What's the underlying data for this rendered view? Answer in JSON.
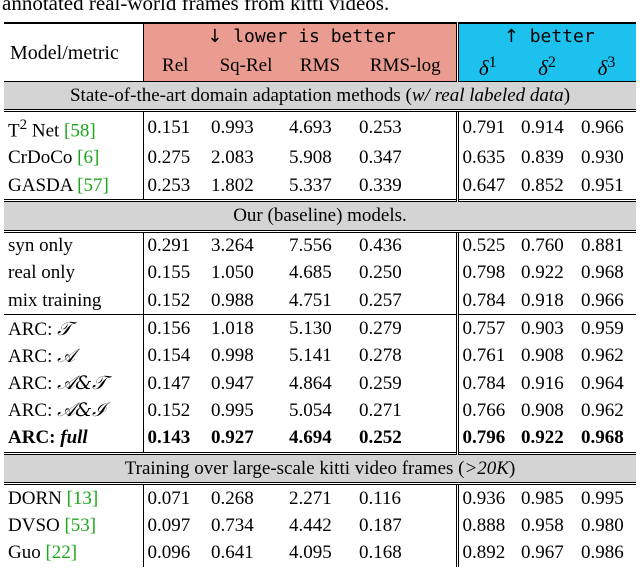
{
  "caption": "annotated real-world frames from kitti videos.",
  "header": {
    "model_metric": "Model/metric",
    "lower_arrow_icon": "down-arrow-icon",
    "lower_label": "lower is better",
    "better_arrow_icon": "up-arrow-icon",
    "better_label": "better",
    "lower_metrics": [
      "Rel",
      "Sq-Rel",
      "RMS",
      "RMS-log"
    ],
    "better_metrics": [
      {
        "symbol": "δ",
        "exp": "1"
      },
      {
        "symbol": "δ",
        "exp": "2"
      },
      {
        "symbol": "δ",
        "exp": "3"
      }
    ]
  },
  "colors": {
    "lower_bg": "#eb9c91",
    "better_bg": "#1cc1ee",
    "section_bg": "#d4d4d4",
    "citation": "#1aa81a"
  },
  "sections": [
    {
      "title": "State-of-the-art domain adaptation methods (",
      "title_em": "w/ real labeled data",
      "title_end": ")",
      "rows": [
        {
          "model": "T",
          "model_sup": "2",
          "model_rest": " Net ",
          "cite": "[58]",
          "values": [
            "0.151",
            "0.993",
            "4.693",
            "0.253",
            "0.791",
            "0.914",
            "0.966"
          ]
        },
        {
          "model": "CrDoCo ",
          "cite": "[6]",
          "values": [
            "0.275",
            "2.083",
            "5.908",
            "0.347",
            "0.635",
            "0.839",
            "0.930"
          ]
        },
        {
          "model": "GASDA ",
          "cite": "[57]",
          "values": [
            "0.253",
            "1.802",
            "5.337",
            "0.339",
            "0.647",
            "0.852",
            "0.951"
          ]
        }
      ]
    },
    {
      "title": "Our (baseline) models.",
      "rows": [
        {
          "model": "syn only",
          "values": [
            "0.291",
            "3.264",
            "7.556",
            "0.436",
            "0.525",
            "0.760",
            "0.881"
          ]
        },
        {
          "model": "real only",
          "values": [
            "0.155",
            "1.050",
            "4.685",
            "0.250",
            "0.798",
            "0.922",
            "0.968"
          ]
        },
        {
          "model": "mix training",
          "values": [
            "0.152",
            "0.988",
            "4.751",
            "0.257",
            "0.784",
            "0.918",
            "0.966"
          ]
        }
      ],
      "arc_rows": [
        {
          "model": "ARC: ",
          "model_script": "𝒯",
          "values": [
            "0.156",
            "1.018",
            "5.130",
            "0.279",
            "0.757",
            "0.903",
            "0.959"
          ]
        },
        {
          "model": "ARC: ",
          "model_script": "𝒜",
          "values": [
            "0.154",
            "0.998",
            "5.141",
            "0.278",
            "0.761",
            "0.908",
            "0.962"
          ]
        },
        {
          "model": "ARC: ",
          "model_script": "𝒜&𝒯",
          "values": [
            "0.147",
            "0.947",
            "4.864",
            "0.259",
            "0.784",
            "0.916",
            "0.964"
          ]
        },
        {
          "model": "ARC: ",
          "model_script": "𝒜&ℐ",
          "values": [
            "0.152",
            "0.995",
            "5.054",
            "0.271",
            "0.766",
            "0.908",
            "0.962"
          ]
        },
        {
          "model": "ARC: ",
          "model_italic": "full",
          "values": [
            "0.143",
            "0.927",
            "4.694",
            "0.252",
            "0.796",
            "0.922",
            "0.968"
          ]
        }
      ]
    },
    {
      "title": "Training over large-scale kitti video frames (",
      "title_math": ">20K",
      "title_end": ")",
      "rows": [
        {
          "model": "DORN ",
          "cite": "[13]",
          "values": [
            "0.071",
            "0.268",
            "2.271",
            "0.116",
            "0.936",
            "0.985",
            "0.995"
          ]
        },
        {
          "model": "DVSO ",
          "cite": "[53]",
          "values": [
            "0.097",
            "0.734",
            "4.442",
            "0.187",
            "0.888",
            "0.958",
            "0.980"
          ]
        },
        {
          "model": "Guo ",
          "cite": "[22]",
          "values": [
            "0.096",
            "0.641",
            "4.095",
            "0.168",
            "0.892",
            "0.967",
            "0.986"
          ]
        }
      ]
    }
  ]
}
